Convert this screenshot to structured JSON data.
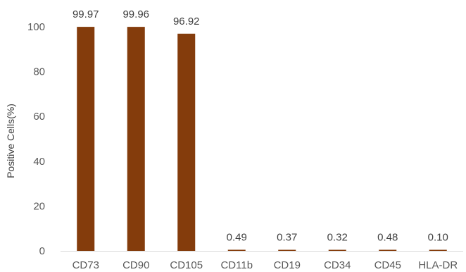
{
  "chart_data": {
    "type": "bar",
    "title": "",
    "xlabel": "",
    "ylabel": "Positive Cells(%)",
    "categories": [
      "CD73",
      "CD90",
      "CD105",
      "CD11b",
      "CD19",
      "CD34",
      "CD45",
      "HLA-DR"
    ],
    "values": [
      99.97,
      99.96,
      96.92,
      0.49,
      0.37,
      0.32,
      0.48,
      0.1
    ],
    "data_labels": [
      "99.97",
      "99.96",
      "96.92",
      "0.49",
      "0.37",
      "0.32",
      "0.48",
      "0.10"
    ],
    "ylim": [
      0,
      100
    ],
    "yticks": [
      0,
      20,
      40,
      60,
      80,
      100
    ],
    "grid": false,
    "legend": "none",
    "bar_color": "#843C0C",
    "axis_color": "#D9D9D9"
  }
}
